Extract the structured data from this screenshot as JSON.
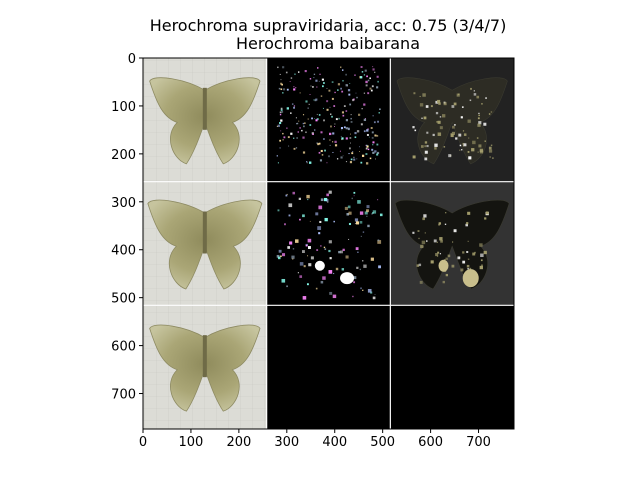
{
  "chart_data": {
    "type": "image-grid",
    "title": "Herochroma supraviridaria, acc: 0.75 (3/4/7)",
    "subtitle": "Herochroma baibarana",
    "xlim": [
      0,
      774
    ],
    "ylim": [
      774,
      0
    ],
    "x_ticks": [
      0,
      100,
      200,
      300,
      400,
      500,
      600,
      700
    ],
    "y_ticks": [
      0,
      100,
      200,
      300,
      400,
      500,
      600,
      700
    ],
    "grid": false,
    "colors": {
      "background": "#ffffff",
      "axis": "#000000",
      "separator": "#ffffff",
      "dark_panel": "#000000",
      "photo_bg": "#dcdcd6",
      "moth": "#a9a575",
      "overlay_dark": "#2a2a2a"
    },
    "tiles": [
      {
        "row": 0,
        "col": 0,
        "kind": "photo",
        "x": [
          0,
          258
        ],
        "y": [
          0,
          258
        ]
      },
      {
        "row": 0,
        "col": 1,
        "kind": "saliency",
        "x": [
          258,
          516
        ],
        "y": [
          0,
          258
        ]
      },
      {
        "row": 0,
        "col": 2,
        "kind": "overlay",
        "x": [
          516,
          774
        ],
        "y": [
          0,
          258
        ]
      },
      {
        "row": 1,
        "col": 0,
        "kind": "photo",
        "x": [
          0,
          258
        ],
        "y": [
          258,
          516
        ]
      },
      {
        "row": 1,
        "col": 1,
        "kind": "saliency",
        "x": [
          258,
          516
        ],
        "y": [
          258,
          516
        ]
      },
      {
        "row": 1,
        "col": 2,
        "kind": "overlay",
        "x": [
          516,
          774
        ],
        "y": [
          258,
          516
        ]
      },
      {
        "row": 2,
        "col": 0,
        "kind": "photo",
        "x": [
          0,
          258
        ],
        "y": [
          516,
          774
        ]
      },
      {
        "row": 2,
        "col": 1,
        "kind": "blank",
        "x": [
          258,
          516
        ],
        "y": [
          516,
          774
        ]
      },
      {
        "row": 2,
        "col": 2,
        "kind": "blank",
        "x": [
          516,
          774
        ],
        "y": [
          516,
          774
        ]
      }
    ]
  }
}
